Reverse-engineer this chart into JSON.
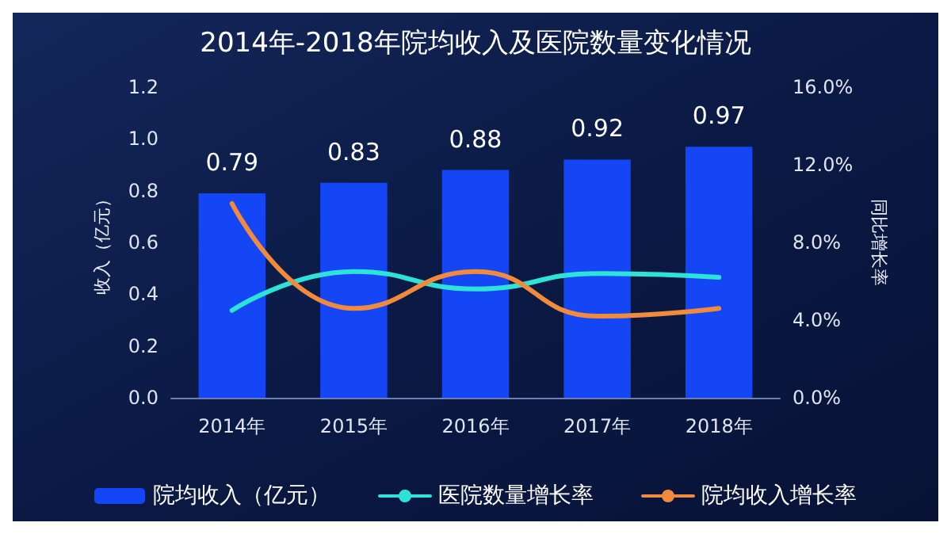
{
  "chart_data": {
    "type": "bar",
    "title": "2014年-2018年院均收入及医院数量变化情况",
    "categories": [
      "2014年",
      "2015年",
      "2016年",
      "2017年",
      "2018年"
    ],
    "series": [
      {
        "name": "院均收入（亿元）",
        "color": "#1446f5",
        "values": [
          0.79,
          0.83,
          0.88,
          0.92,
          0.97
        ],
        "value_labels": [
          "0.79",
          "0.83",
          "0.88",
          "0.92",
          "0.97"
        ]
      },
      {
        "name": "医院数量增长率",
        "type": "line",
        "axis": "y2",
        "color": "#2de3d8",
        "values": [
          4.5,
          6.5,
          5.6,
          6.4,
          6.2
        ]
      },
      {
        "name": "院均收入增长率",
        "type": "line",
        "axis": "y2",
        "color": "#f08a3c",
        "values": [
          10.0,
          4.6,
          6.5,
          4.2,
          4.6
        ]
      }
    ],
    "ylabel": "收入（亿元）",
    "y2label": "同比增长率",
    "ylim": [
      0,
      1.2
    ],
    "yticks": [
      {
        "value": 0,
        "label": "0.0"
      },
      {
        "value": 0.2,
        "label": "0.2"
      },
      {
        "value": 0.4,
        "label": "0.4"
      },
      {
        "value": 0.6,
        "label": "0.6"
      },
      {
        "value": 0.8,
        "label": "0.8"
      },
      {
        "value": 1,
        "label": "1.0"
      },
      {
        "value": 1.2,
        "label": "1.2"
      }
    ],
    "y2lim": [
      0,
      16
    ],
    "y2ticks": [
      {
        "value": 0,
        "label": "0.0%"
      },
      {
        "value": 4,
        "label": "4.0%"
      },
      {
        "value": 8,
        "label": "8.0%"
      },
      {
        "value": 12,
        "label": "12.0%"
      },
      {
        "value": 16,
        "label": "16.0%"
      }
    ],
    "grid": false,
    "legend": "bottom",
    "marker": "none",
    "line_style": "solid"
  }
}
